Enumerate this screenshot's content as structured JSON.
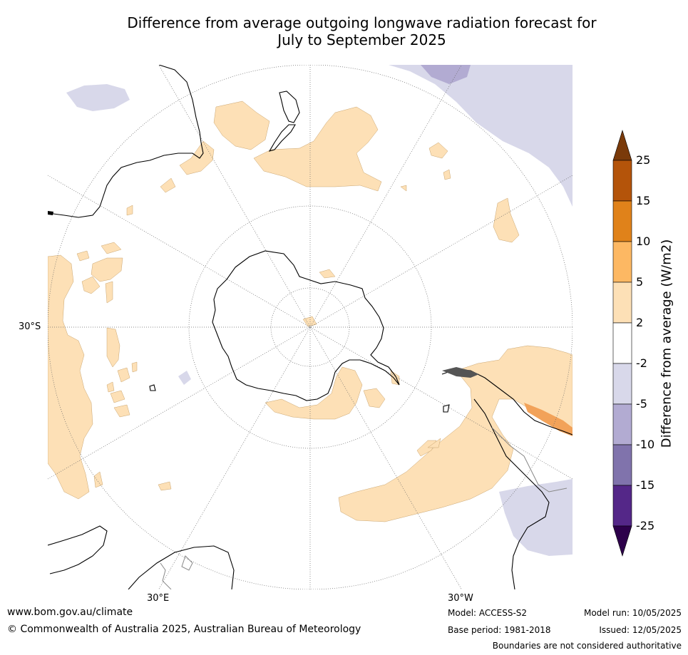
{
  "title_line1": "Difference from average outgoing longwave radiation forecast for",
  "title_line2": "July to September 2025",
  "map_labels": {
    "lat_30s": "30°S",
    "lon_30e": "30°E",
    "lon_30w": "30°W"
  },
  "colorbar": {
    "label": "Difference from average (W/m2)",
    "ticks": [
      "25",
      "15",
      "10",
      "5",
      "2",
      "-2",
      "-5",
      "-10",
      "-15",
      "-25"
    ],
    "colors": [
      "#7a3a0a",
      "#b4540a",
      "#e0821a",
      "#fdb863",
      "#fde0b6",
      "#ffffff",
      "#d8d8ea",
      "#b2abd2",
      "#8073ac",
      "#542788",
      "#2d004b"
    ]
  },
  "footer": {
    "site": "www.bom.gov.au/climate",
    "copyright": "© Commonwealth of Australia 2025, Australian Bureau of Meteorology",
    "model": "Model: ACCESS-S2",
    "base_period": "Base period: 1981-2018",
    "model_run": "Model run: 10/05/2025",
    "issued": "Issued: 12/05/2025",
    "disclaimer": "Boundaries are not considered authoritative"
  }
}
